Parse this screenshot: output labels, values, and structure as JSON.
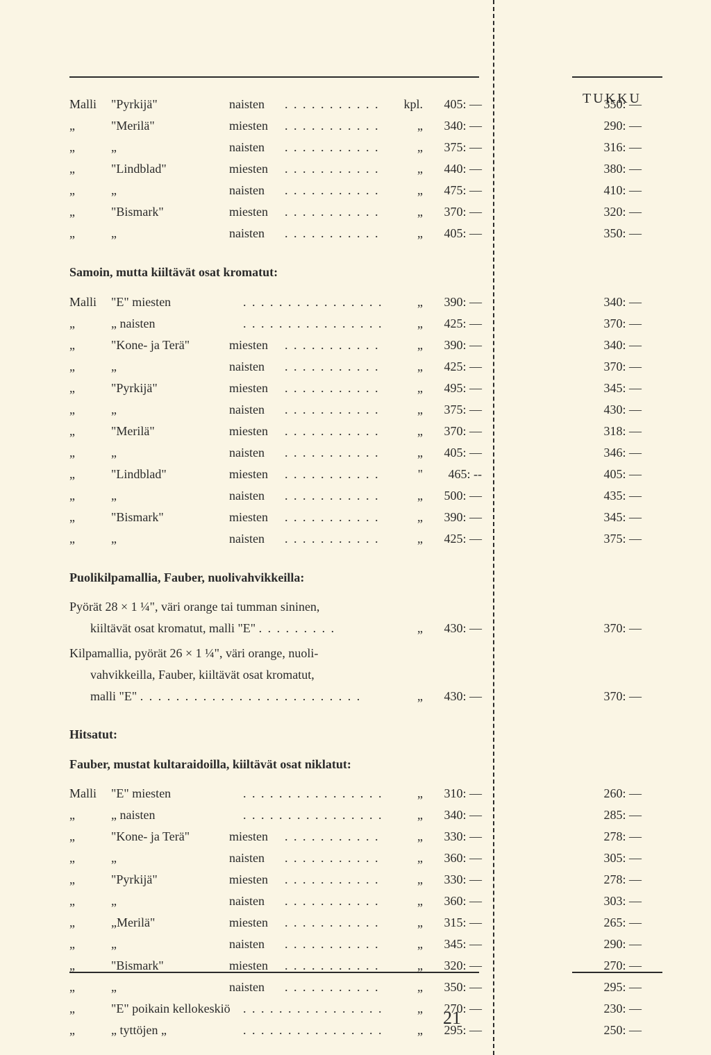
{
  "headers": {
    "tukku": "TUKKU"
  },
  "labels": {
    "malli": "Malli",
    "ditto": "„",
    "kpl": "kpl.",
    "unit": "„"
  },
  "section1": {
    "rows": [
      {
        "c1": "Malli",
        "c2": "\"Pyrkijä\"",
        "c3": "naisten",
        "unit": "kpl.",
        "p1": "405: —",
        "p2": "350: —"
      },
      {
        "c1": "„",
        "c2": "\"Merilä\"",
        "c3": "miesten",
        "unit": "„",
        "p1": "340: —",
        "p2": "290: —"
      },
      {
        "c1": "„",
        "c2": "„",
        "c3": "naisten",
        "unit": "„",
        "p1": "375: —",
        "p2": "316: —"
      },
      {
        "c1": "„",
        "c2": "\"Lindblad\"",
        "c3": "miesten",
        "unit": "„",
        "p1": "440: —",
        "p2": "380: —"
      },
      {
        "c1": "„",
        "c2": "„",
        "c3": "naisten",
        "unit": "„",
        "p1": "475: —",
        "p2": "410: —"
      },
      {
        "c1": "„",
        "c2": "\"Bismark\"",
        "c3": "miesten",
        "unit": "„",
        "p1": "370: —",
        "p2": "320: —"
      },
      {
        "c1": "„",
        "c2": "„",
        "c3": "naisten",
        "unit": "„",
        "p1": "405: —",
        "p2": "350: —"
      }
    ]
  },
  "section2": {
    "title": "Samoin, mutta kiiltävät osat kromatut:",
    "rows": [
      {
        "c1": "Malli",
        "c2": "\"E\" miesten",
        "long": true,
        "unit": "„",
        "p1": "390: —",
        "p2": "340: —"
      },
      {
        "c1": "„",
        "c2": "„   naisten",
        "long": true,
        "unit": "„",
        "p1": "425: —",
        "p2": "370: —"
      },
      {
        "c1": "„",
        "c2": "\"Kone- ja Terä\"",
        "c3": "miesten",
        "unit": "„",
        "p1": "390: —",
        "p2": "340: —"
      },
      {
        "c1": "„",
        "c2": "„",
        "c3": "naisten",
        "unit": "„",
        "p1": "425: —",
        "p2": "370: —"
      },
      {
        "c1": "„",
        "c2": "\"Pyrkijä\"",
        "c3": "miesten",
        "unit": "„",
        "p1": "495: —",
        "p2": "345: —"
      },
      {
        "c1": "„",
        "c2": "„",
        "c3": "naisten",
        "unit": "„",
        "p1": "375: —",
        "p2": "430: —"
      },
      {
        "c1": "„",
        "c2": "\"Merilä\"",
        "c3": "miesten",
        "unit": "„",
        "p1": "370: —",
        "p2": "318: —"
      },
      {
        "c1": "„",
        "c2": "„",
        "c3": "naisten",
        "unit": "„",
        "p1": "405: —",
        "p2": "346: —"
      },
      {
        "c1": "„",
        "c2": "\"Lindblad\"",
        "c3": "miesten",
        "unit": "\"",
        "p1": "465: --",
        "p2": "405: —"
      },
      {
        "c1": "„",
        "c2": "„",
        "c3": "naisten",
        "unit": "„",
        "p1": "500: —",
        "p2": "435: —"
      },
      {
        "c1": "„",
        "c2": "\"Bismark\"",
        "c3": "miesten",
        "unit": "„",
        "p1": "390: —",
        "p2": "345: —"
      },
      {
        "c1": "„",
        "c2": "„",
        "c3": "naisten",
        "unit": "„",
        "p1": "425: —",
        "p2": "375: —"
      }
    ]
  },
  "section3": {
    "title": "Puolikilpamallia, Fauber, nuolivahvikkeilla:",
    "paras": [
      {
        "lines": [
          "Pyörät 28 × 1 ¼\", väri orange tai tumman sininen,",
          "kiiltävät osat kromatut, malli \"E\""
        ],
        "dots": ". . . . . . . . .",
        "unit": "„",
        "p1": "430: —",
        "p2": "370: —"
      },
      {
        "lines": [
          "Kilpamallia, pyörät 26 × 1 ¼\", väri orange, nuoli-",
          "vahvikkeilla, Fauber, kiiltävät osat kromatut,",
          "malli \"E\""
        ],
        "dots": ". . . . . . . . . . . . . . . . . . . . . . . . .",
        "unit": "„",
        "p1": "430: —",
        "p2": "370: —"
      }
    ]
  },
  "section4": {
    "title1": "Hitsatut:",
    "title2": "Fauber, mustat kultaraidoilla, kiiltävät osat niklatut:",
    "rows": [
      {
        "c1": "Malli",
        "c2": "\"E\" miesten",
        "long": true,
        "unit": "„",
        "p1": "310: —",
        "p2": "260: —"
      },
      {
        "c1": "„",
        "c2": "„   naisten",
        "long": true,
        "unit": "„",
        "p1": "340: —",
        "p2": "285: —"
      },
      {
        "c1": "„",
        "c2": "\"Kone- ja Terä\"",
        "c3": "miesten",
        "unit": "„",
        "p1": "330: —",
        "p2": "278: —"
      },
      {
        "c1": "„",
        "c2": "„",
        "c3": "naisten",
        "unit": "„",
        "p1": "360: —",
        "p2": "305: —"
      },
      {
        "c1": "„",
        "c2": "\"Pyrkijä\"",
        "c3": "miesten",
        "unit": "„",
        "p1": "330: —",
        "p2": "278: —"
      },
      {
        "c1": "„",
        "c2": "„",
        "c3": "naisten",
        "unit": "„",
        "p1": "360: —",
        "p2": "303: —"
      },
      {
        "c1": "„",
        "c2": "„Merilä\"",
        "c3": "miesten",
        "unit": "„",
        "p1": "315: —",
        "p2": "265: —"
      },
      {
        "c1": "„",
        "c2": "„",
        "c3": "naisten",
        "unit": "„",
        "p1": "345: —",
        "p2": "290: —"
      },
      {
        "c1": "„",
        "c2": "\"Bismark\"",
        "c3": "miesten",
        "unit": "„",
        "p1": "320: —",
        "p2": "270: —"
      },
      {
        "c1": "„",
        "c2": "„",
        "c3": "naisten",
        "unit": "„",
        "p1": "350: —",
        "p2": "295: —"
      },
      {
        "c1": "„",
        "c2": "\"E\" poikain kellokeskiö",
        "long": true,
        "unit": "„",
        "p1": "270: —",
        "p2": "230: —"
      },
      {
        "c1": "„",
        "c2": "„   tyttöjen      „",
        "long": true,
        "unit": "„",
        "p1": "295: —",
        "p2": "250: —"
      }
    ]
  },
  "pagenum": "21"
}
